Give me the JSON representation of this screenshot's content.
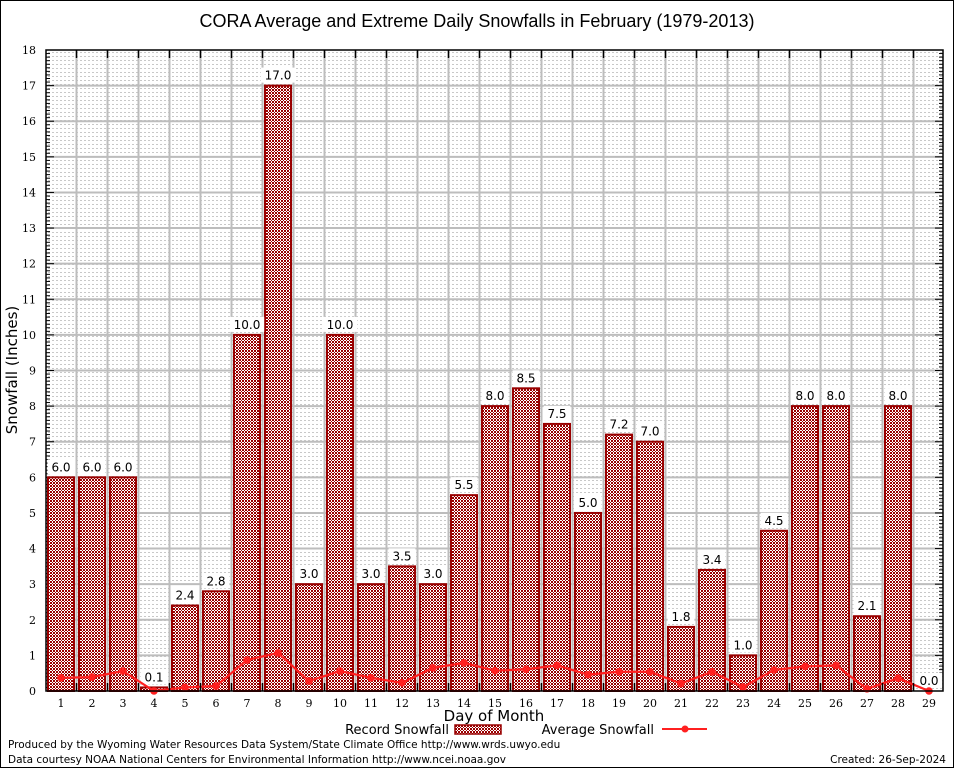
{
  "chart_data": {
    "type": "bar",
    "title": "CORA Average and Extreme Daily Snowfalls in February (1979-2013)",
    "xlabel": "Day of Month",
    "ylabel": "Snowfall (Inches)",
    "ylim": [
      0,
      18
    ],
    "yticks": [
      0,
      1,
      2,
      3,
      4,
      5,
      6,
      7,
      8,
      9,
      10,
      11,
      12,
      13,
      14,
      15,
      16,
      17,
      18
    ],
    "grid": true,
    "legend_position": "bottom",
    "categories": [
      "1",
      "2",
      "3",
      "4",
      "5",
      "6",
      "7",
      "8",
      "9",
      "10",
      "11",
      "12",
      "13",
      "14",
      "15",
      "16",
      "17",
      "18",
      "19",
      "20",
      "21",
      "22",
      "23",
      "24",
      "25",
      "26",
      "27",
      "28",
      "29"
    ],
    "series": [
      {
        "name": "Record Snowfall",
        "type": "bar",
        "color": "#990000",
        "values": [
          6.0,
          6.0,
          6.0,
          0.1,
          2.4,
          2.8,
          10.0,
          17.0,
          3.0,
          10.0,
          3.0,
          3.5,
          3.0,
          5.5,
          8.0,
          8.5,
          7.5,
          5.0,
          7.2,
          7.0,
          1.8,
          3.4,
          1.0,
          4.5,
          8.0,
          8.0,
          2.1,
          8.0,
          0.0
        ],
        "labels": [
          "6.0",
          "6.0",
          "6.0",
          "0.1",
          "2.4",
          "2.8",
          "10.0",
          "17.0",
          "3.0",
          "10.0",
          "3.0",
          "3.5",
          "3.0",
          "5.5",
          "8.0",
          "8.5",
          "7.5",
          "5.0",
          "7.2",
          "7.0",
          "1.8",
          "3.4",
          "1.0",
          "4.5",
          "8.0",
          "8.0",
          "2.1",
          "8.0",
          "0.0"
        ]
      },
      {
        "name": "Average Snowfall",
        "type": "line",
        "color": "#ff2020",
        "values": [
          0.37,
          0.39,
          0.56,
          0.0,
          0.1,
          0.14,
          0.87,
          1.07,
          0.28,
          0.56,
          0.37,
          0.23,
          0.65,
          0.79,
          0.57,
          0.61,
          0.72,
          0.46,
          0.54,
          0.54,
          0.21,
          0.54,
          0.11,
          0.59,
          0.69,
          0.72,
          0.06,
          0.36,
          0.0
        ]
      }
    ]
  },
  "footer": {
    "produced_by": "Produced by the Wyoming Water Resources Data System/State Climate Office http://www.wrds.uwyo.edu",
    "data_courtesy": "Data courtesy NOAA National Centers for Environmental Information http://www.ncei.noaa.gov",
    "created": "Created: 26-Sep-2024"
  }
}
